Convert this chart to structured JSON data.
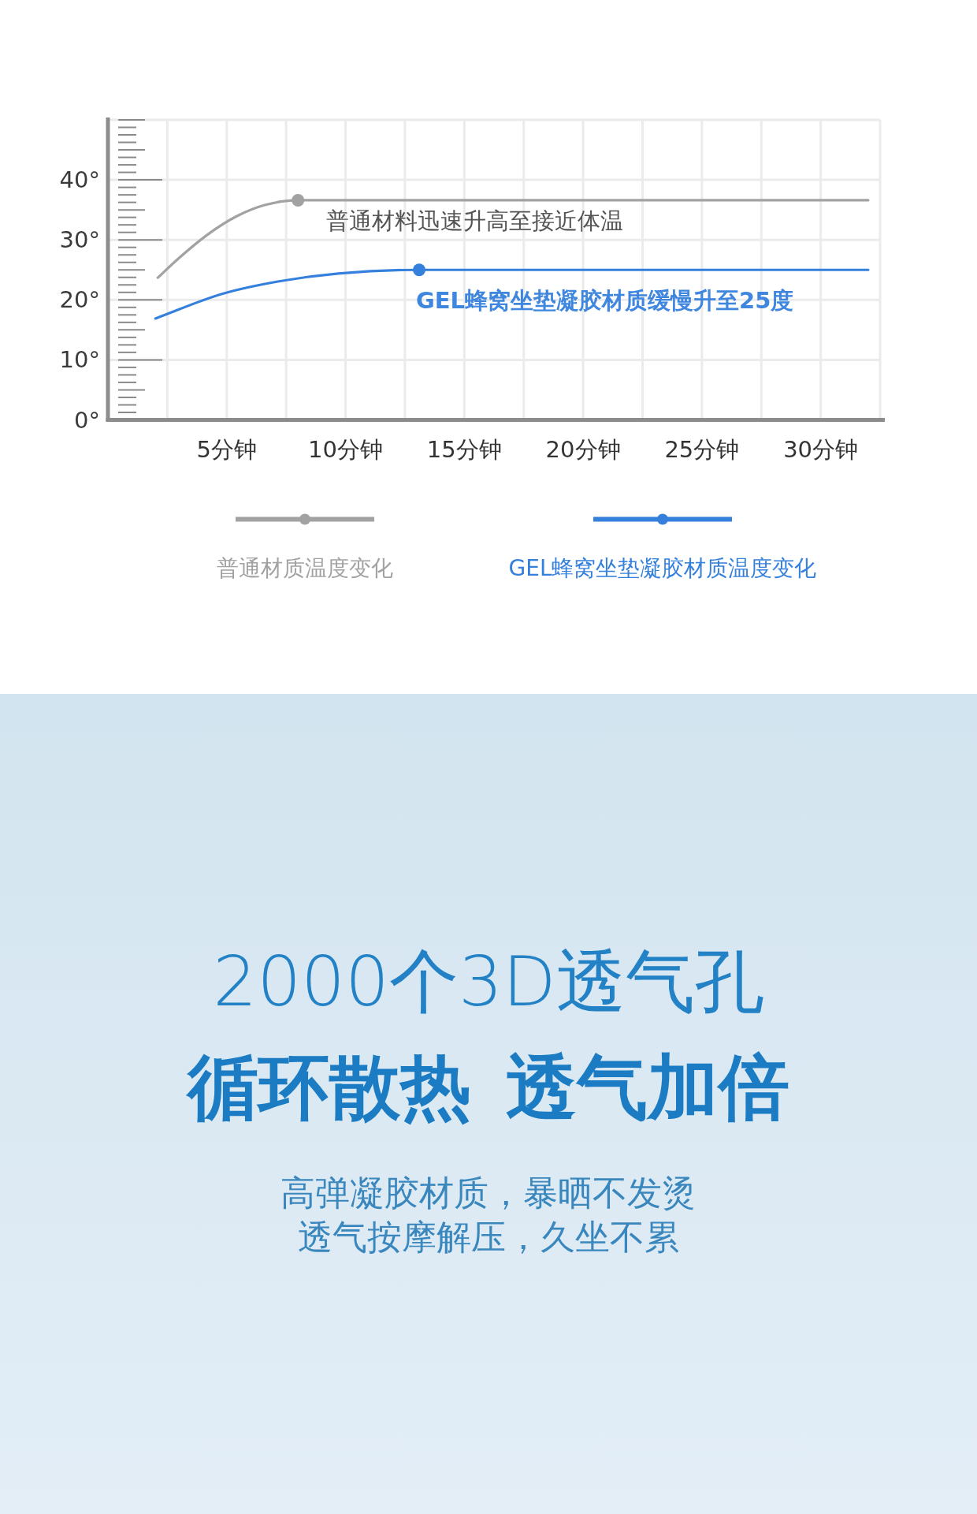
{
  "chart_data": {
    "type": "line",
    "series": [
      {
        "name": "普通材质温度变化",
        "color": "#a2a2a2",
        "x": [
          2.1,
          3,
          4.2,
          5.4,
          6.6,
          8,
          32
        ],
        "values": [
          23.7,
          27,
          30.9,
          33.9,
          35.8,
          36.6,
          36.6
        ]
      },
      {
        "name": "GEL蜂窝坐垫凝胶材质温度变化",
        "color": "#3580dc",
        "x": [
          2,
          4.8,
          7.2,
          9.7,
          13.1,
          32
        ],
        "values": [
          16.9,
          21,
          23.1,
          24.4,
          25,
          25
        ]
      }
    ],
    "xlim": [
      0,
      32.5
    ],
    "ylim": [
      0,
      50
    ],
    "xticks": [
      {
        "value": 2.5,
        "label": null
      },
      {
        "value": 5,
        "label": "5分钟"
      },
      {
        "value": 7.5,
        "label": null
      },
      {
        "value": 10,
        "label": "10分钟"
      },
      {
        "value": 12.5,
        "label": null
      },
      {
        "value": 15,
        "label": "15分钟"
      },
      {
        "value": 17.5,
        "label": null
      },
      {
        "value": 20,
        "label": "20分钟"
      },
      {
        "value": 22.5,
        "label": null
      },
      {
        "value": 25,
        "label": "25分钟"
      },
      {
        "value": 27.5,
        "label": null
      },
      {
        "value": 30,
        "label": "30分钟"
      },
      {
        "value": 32.5,
        "label": null
      }
    ],
    "yticks": [
      {
        "value": 0,
        "label": "0°"
      },
      {
        "value": 10,
        "label": "10°"
      },
      {
        "value": 20,
        "label": "20°"
      },
      {
        "value": 30,
        "label": "30°"
      },
      {
        "value": 40,
        "label": "40°"
      },
      {
        "value": 50,
        "label": null
      }
    ],
    "grid": true,
    "legend": "bottom",
    "line_style": "solid",
    "annotations": [
      {
        "text": "普通材料迅速升高至接近体温",
        "x": 8,
        "y": 36.6
      },
      {
        "text": "GEL蜂窝坐垫凝胶材质缓慢升至25度",
        "x": 13.1,
        "y": 25
      },
      "2000个3D透气孔",
      "循环散热 透气加倍",
      "高弹凝胶材质，暴晒不发烫",
      "透气按摩解压，久坐不累"
    ]
  }
}
